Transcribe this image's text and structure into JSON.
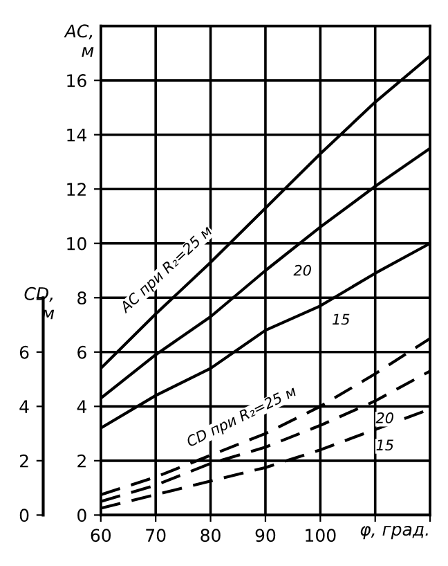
{
  "chart_data": {
    "type": "line",
    "xlabel": "φ, град.",
    "ylabel": "AC,\nм",
    "y2label": "CD,\nм",
    "x": [
      60,
      70,
      80,
      90,
      100,
      110,
      120
    ],
    "series": [
      {
        "color": "#000000",
        "line_style": "solid",
        "values": [
          5.4,
          7.4,
          9.3,
          11.3,
          13.3,
          15.2,
          16.9
        ]
      },
      {
        "color": "#000000",
        "line_style": "solid",
        "values": [
          4.3,
          5.9,
          7.3,
          9.0,
          10.6,
          12.1,
          13.5
        ]
      },
      {
        "color": "#000000",
        "line_style": "solid",
        "values": [
          3.2,
          4.4,
          5.4,
          6.8,
          7.7,
          8.9,
          10.0
        ]
      },
      {
        "color": "#000000",
        "line_style": "dashed",
        "values": [
          0.75,
          1.4,
          2.2,
          3.0,
          4.0,
          5.2,
          6.5
        ]
      },
      {
        "color": "#000000",
        "line_style": "dashed",
        "values": [
          0.5,
          1.1,
          1.9,
          2.5,
          3.3,
          4.2,
          5.3
        ]
      },
      {
        "color": "#000000",
        "line_style": "dashed",
        "values": [
          0.25,
          0.75,
          1.25,
          1.75,
          2.4,
          3.15,
          3.9
        ]
      }
    ],
    "xlim": [
      60,
      120
    ],
    "xticks": [
      60,
      70,
      80,
      90,
      100,
      {
        "value": 110,
        "label": null
      },
      {
        "value": 120,
        "label": null
      }
    ],
    "ylim": [
      0,
      18
    ],
    "yticks": [
      0,
      2,
      4,
      6,
      8,
      10,
      12,
      14,
      16
    ],
    "y2lim": [
      0,
      18
    ],
    "y2ticks": [
      0,
      2,
      4,
      6,
      {
        "value": 8,
        "label": null
      }
    ],
    "grid": true,
    "annotations": [
      {
        "text": "AC при R₂=25 м",
        "x": 75,
        "y": 8.35
      },
      {
        "text": "20",
        "x": 93,
        "y": 9.5
      },
      {
        "text": "15",
        "x": 100,
        "y": 7.7
      },
      {
        "text": "CD при R₂=25 м",
        "x": 88,
        "y": 2.8
      },
      {
        "text": "20",
        "x": 108,
        "y": 4.0
      },
      {
        "text": "15",
        "x": 108,
        "y": 3.0
      }
    ]
  }
}
